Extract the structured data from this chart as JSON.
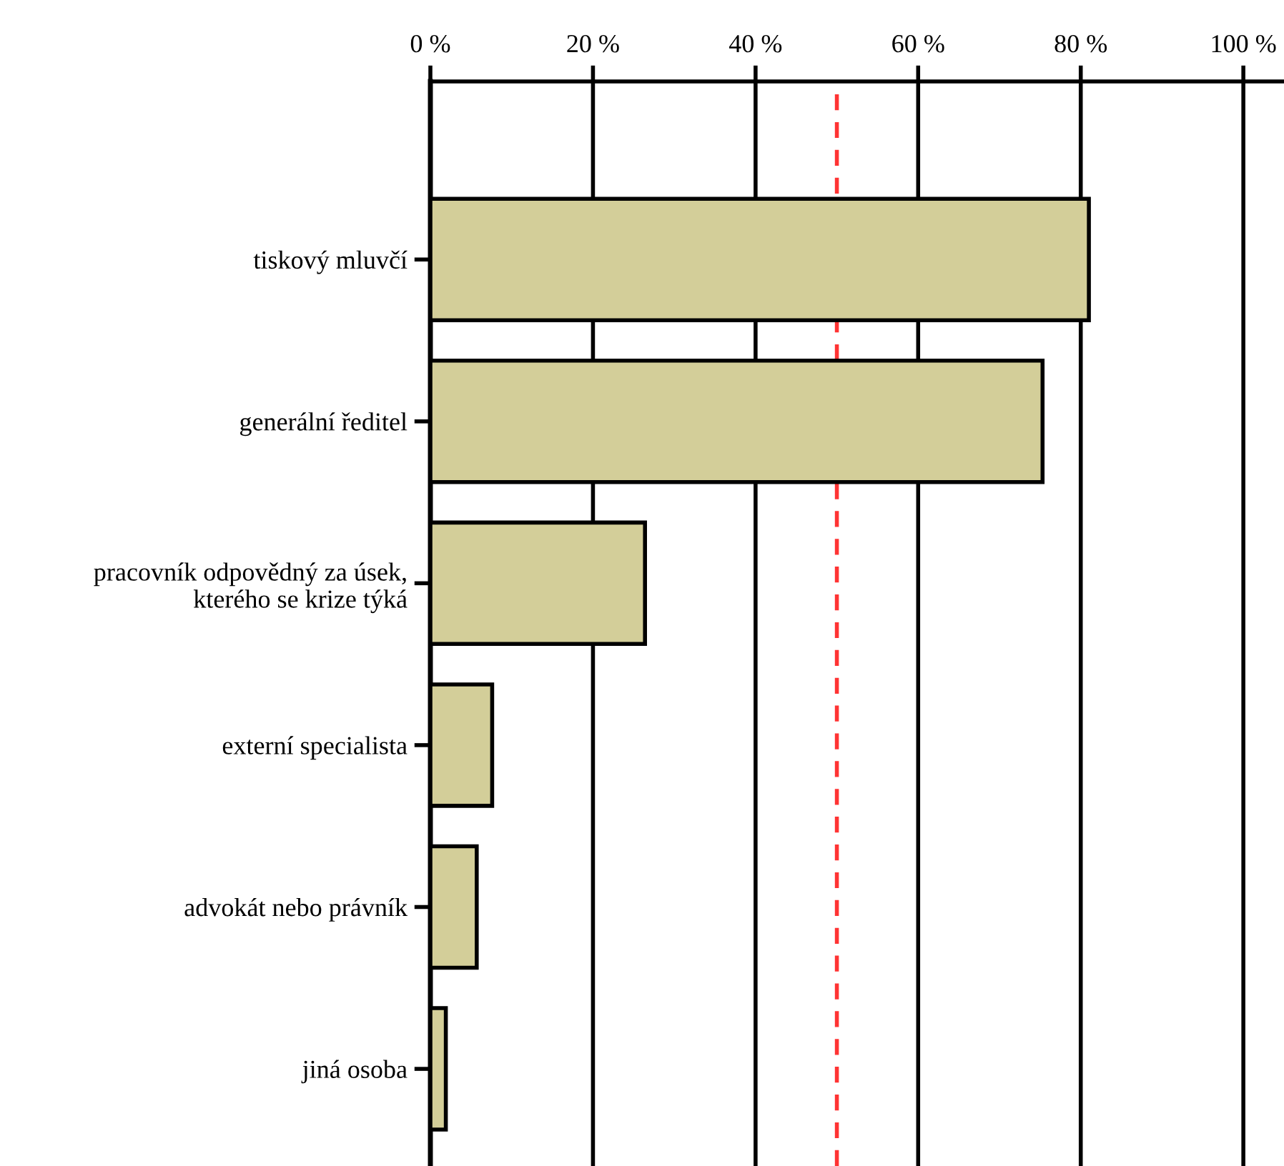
{
  "chart_data": {
    "type": "bar",
    "orientation": "horizontal",
    "categories": [
      "tiskový mluvčí",
      "generální ředitel",
      "pracovník odpovědný za úsek,\nkterého se krize týká",
      "externí specialista",
      "advokát nebo právník",
      "jiná osoba"
    ],
    "values": [
      81,
      75.3,
      26.4,
      7.6,
      5.7,
      1.9
    ],
    "color": "#d3ce99",
    "xlim": [
      0,
      105
    ],
    "xticks": [
      {
        "value": 0,
        "label": "0 %"
      },
      {
        "value": 20,
        "label": "20 %"
      },
      {
        "value": 40,
        "label": "40 %"
      },
      {
        "value": 60,
        "label": "60 %"
      },
      {
        "value": 80,
        "label": "80 %"
      },
      {
        "value": 100,
        "label": "100 %"
      }
    ],
    "grid": "x",
    "ref_lines": [
      {
        "axis": "x",
        "value": 50,
        "color": "#ff3333",
        "line_style": "dashed"
      }
    ]
  }
}
